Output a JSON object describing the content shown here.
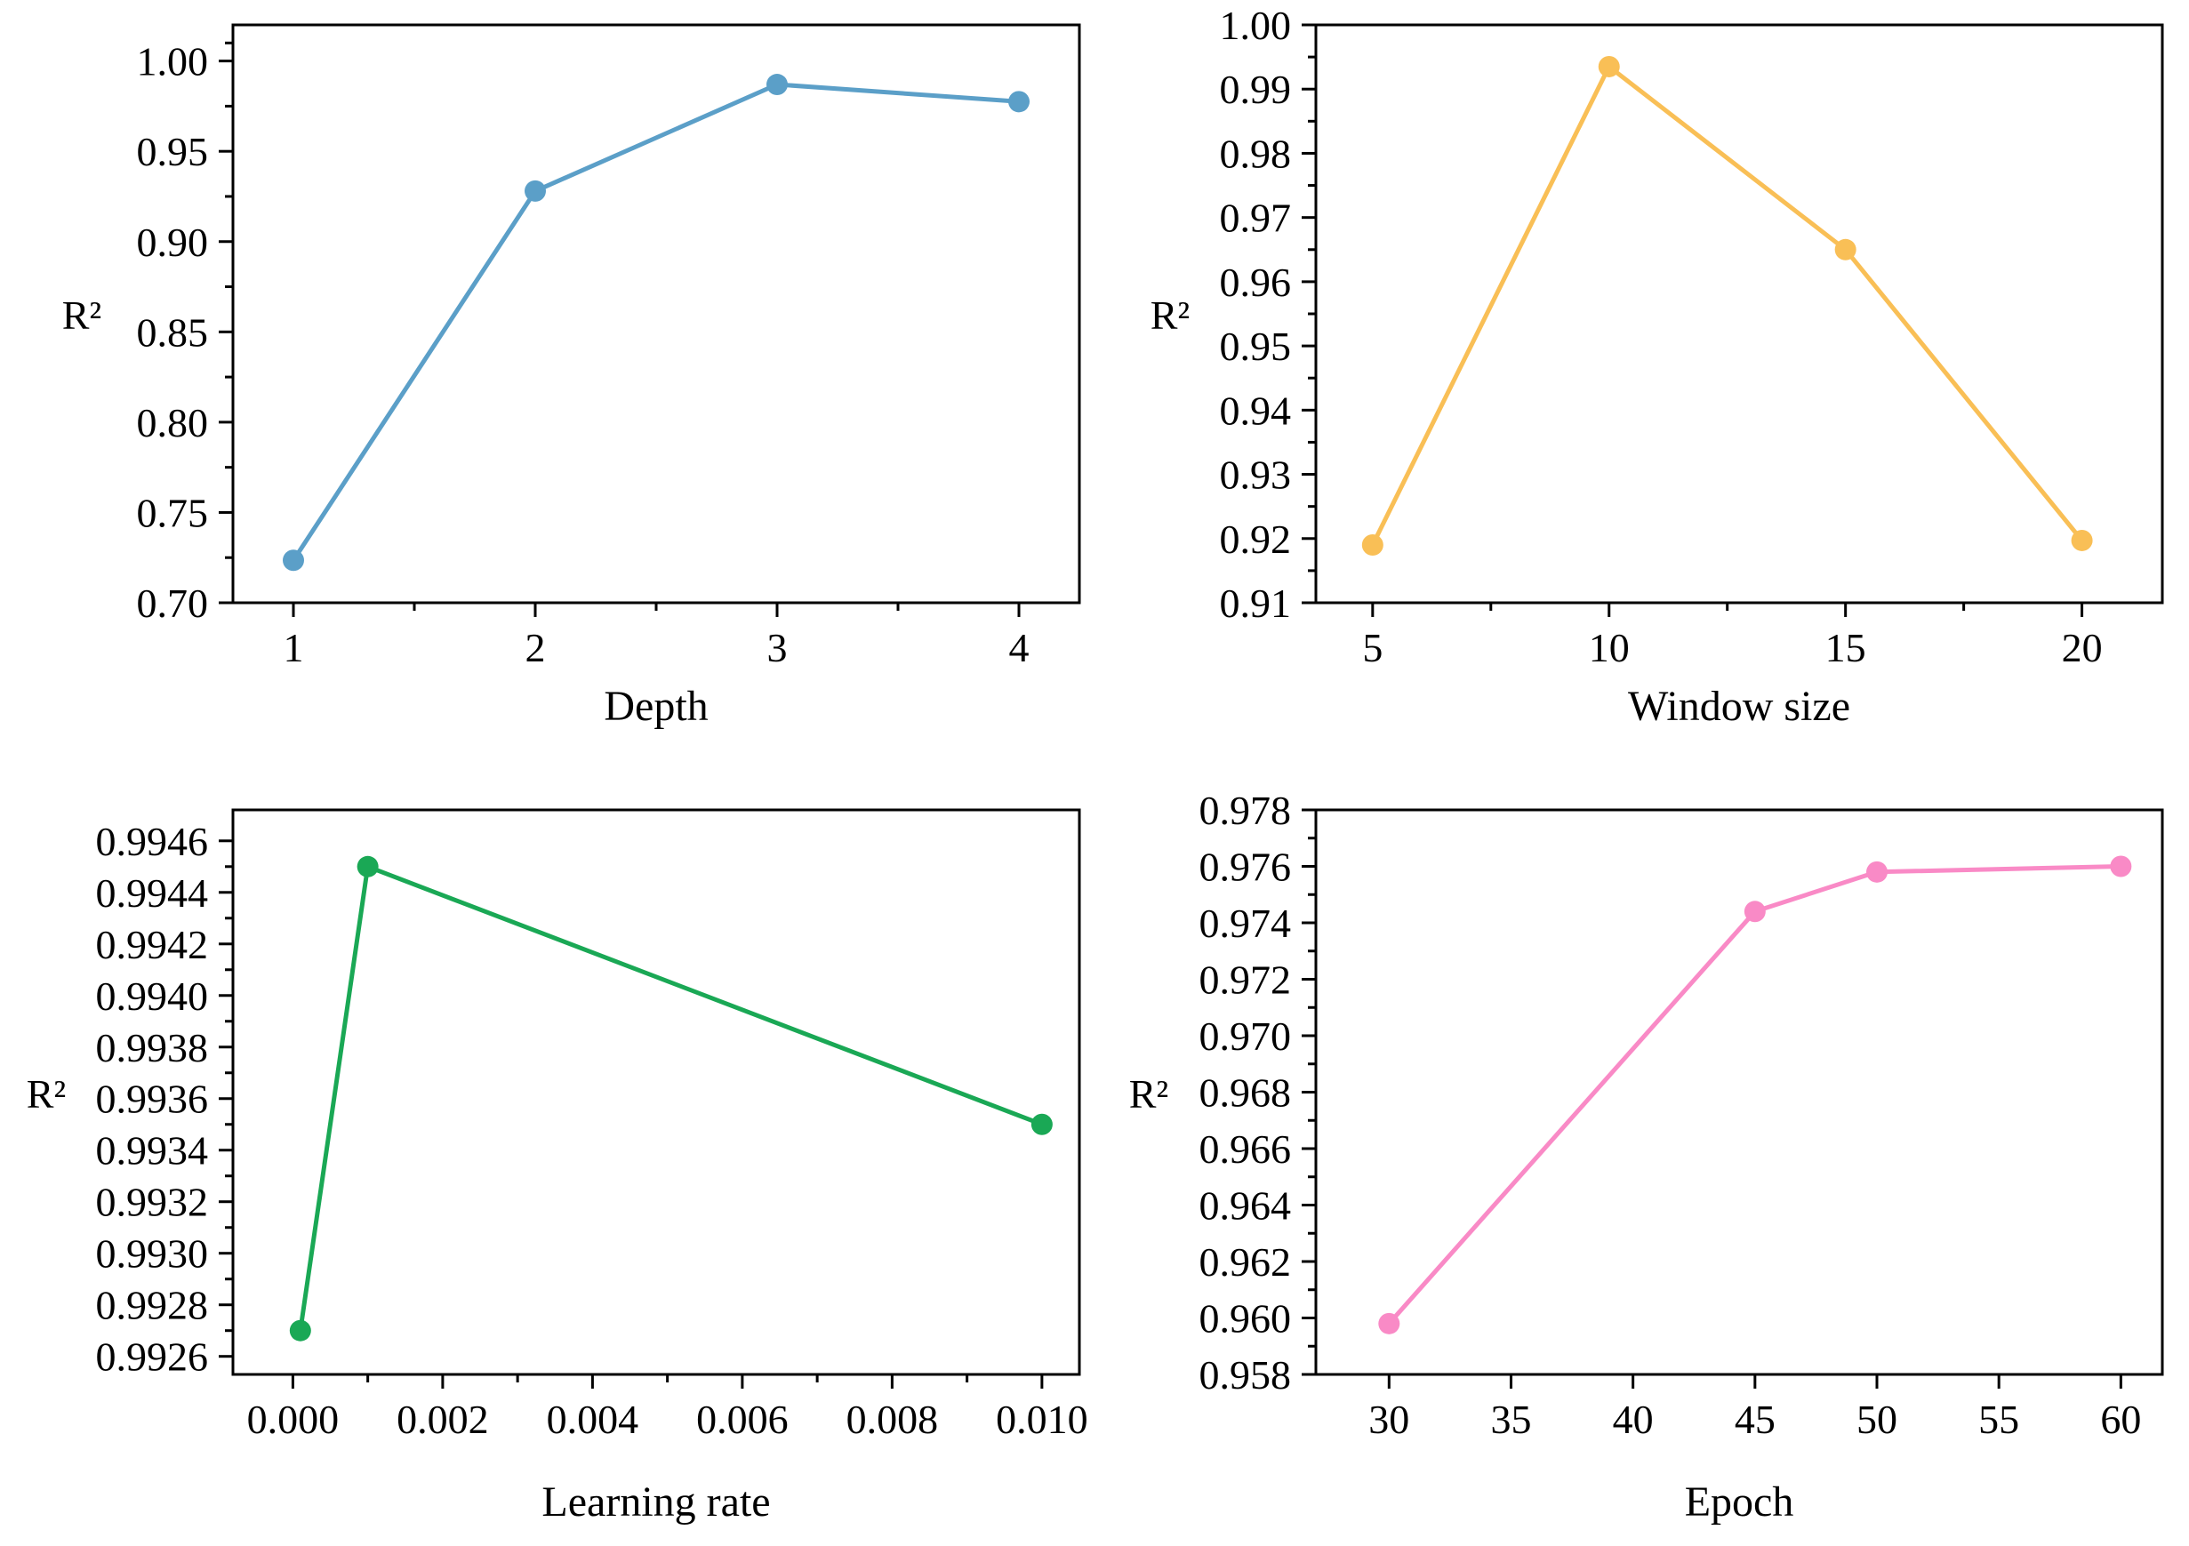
{
  "chart_data": [
    {
      "type": "line",
      "title": "",
      "xlabel": "Depth",
      "ylabel": "R²",
      "color": "#5b9fc8",
      "x": [
        1,
        2,
        3,
        4
      ],
      "values": [
        0.7235,
        0.928,
        0.987,
        0.9775
      ],
      "xlim": [
        0.75,
        4.25
      ],
      "ylim": [
        0.7,
        1.02
      ],
      "xticks": [
        1,
        2,
        3,
        4
      ],
      "xtick_labels": [
        "1",
        "2",
        "3",
        "4"
      ],
      "xminor": [
        1.5,
        2.5,
        3.5
      ],
      "yticks": [
        0.7,
        0.75,
        0.8,
        0.85,
        0.9,
        0.95,
        1.0
      ],
      "ytick_labels": [
        "0.70",
        "0.75",
        "0.80",
        "0.85",
        "0.90",
        "0.95",
        "1.00"
      ],
      "yminor": [
        0.725,
        0.775,
        0.825,
        0.875,
        0.925,
        0.975,
        1.01
      ]
    },
    {
      "type": "line",
      "title": "",
      "xlabel": "Window size",
      "ylabel": "R²",
      "color": "#f9bf56",
      "x": [
        5,
        10,
        15,
        20
      ],
      "values": [
        0.919,
        0.9935,
        0.965,
        0.9197
      ],
      "xlim": [
        3.8,
        21.7
      ],
      "ylim": [
        0.91,
        1.0
      ],
      "xticks": [
        5,
        10,
        15,
        20
      ],
      "xtick_labels": [
        "5",
        "10",
        "15",
        "20"
      ],
      "xminor": [
        7.5,
        12.5,
        17.5
      ],
      "yticks": [
        0.91,
        0.92,
        0.93,
        0.94,
        0.95,
        0.96,
        0.97,
        0.98,
        0.99,
        1.0
      ],
      "ytick_labels": [
        "0.91",
        "0.92",
        "0.93",
        "0.94",
        "0.95",
        "0.96",
        "0.97",
        "0.98",
        "0.99",
        "1.00"
      ],
      "yminor": [
        0.915,
        0.925,
        0.935,
        0.945,
        0.955,
        0.965,
        0.975,
        0.985,
        0.995
      ]
    },
    {
      "type": "line",
      "title": "",
      "xlabel": "Learning rate",
      "ylabel": "R²",
      "color": "#1aa855",
      "x": [
        0.0001,
        0.001,
        0.01
      ],
      "values": [
        0.9927,
        0.9945,
        0.9935
      ],
      "xlim": [
        -0.0008,
        0.0105
      ],
      "ylim": [
        0.99253,
        0.99472
      ],
      "xticks": [
        0.0,
        0.002,
        0.004,
        0.006,
        0.008,
        0.01
      ],
      "xtick_labels": [
        "0.000",
        "0.002",
        "0.004",
        "0.006",
        "0.008",
        "0.010"
      ],
      "xminor": [
        0.001,
        0.003,
        0.005,
        0.007,
        0.009
      ],
      "yticks": [
        0.9926,
        0.9928,
        0.993,
        0.9932,
        0.9934,
        0.9936,
        0.9938,
        0.994,
        0.9942,
        0.9944,
        0.9946
      ],
      "ytick_labels": [
        "0.9926",
        "0.9928",
        "0.9930",
        "0.9932",
        "0.9934",
        "0.9936",
        "0.9938",
        "0.9940",
        "0.9942",
        "0.9944",
        "0.9946"
      ],
      "yminor": [
        0.9927,
        0.9929,
        0.9931,
        0.9933,
        0.9935,
        0.9937,
        0.9939,
        0.9941,
        0.9943,
        0.9945
      ]
    },
    {
      "type": "line",
      "title": "",
      "xlabel": "Epoch",
      "ylabel": "R²",
      "color": "#f98ac6",
      "x": [
        30,
        45,
        50,
        60
      ],
      "values": [
        0.9598,
        0.9744,
        0.9758,
        0.976
      ],
      "xlim": [
        27,
        61.7
      ],
      "ylim": [
        0.958,
        0.978
      ],
      "xticks": [
        30,
        35,
        40,
        45,
        50,
        55,
        60
      ],
      "xtick_labels": [
        "30",
        "35",
        "40",
        "45",
        "50",
        "55",
        "60"
      ],
      "xminor": [],
      "yticks": [
        0.958,
        0.96,
        0.962,
        0.964,
        0.966,
        0.968,
        0.97,
        0.972,
        0.974,
        0.976,
        0.978
      ],
      "ytick_labels": [
        "0.958",
        "0.960",
        "0.962",
        "0.964",
        "0.966",
        "0.968",
        "0.970",
        "0.972",
        "0.974",
        "0.976",
        "0.978"
      ],
      "yminor": [
        0.959,
        0.961,
        0.963,
        0.965,
        0.967,
        0.969,
        0.971,
        0.973,
        0.975,
        0.977
      ]
    }
  ]
}
